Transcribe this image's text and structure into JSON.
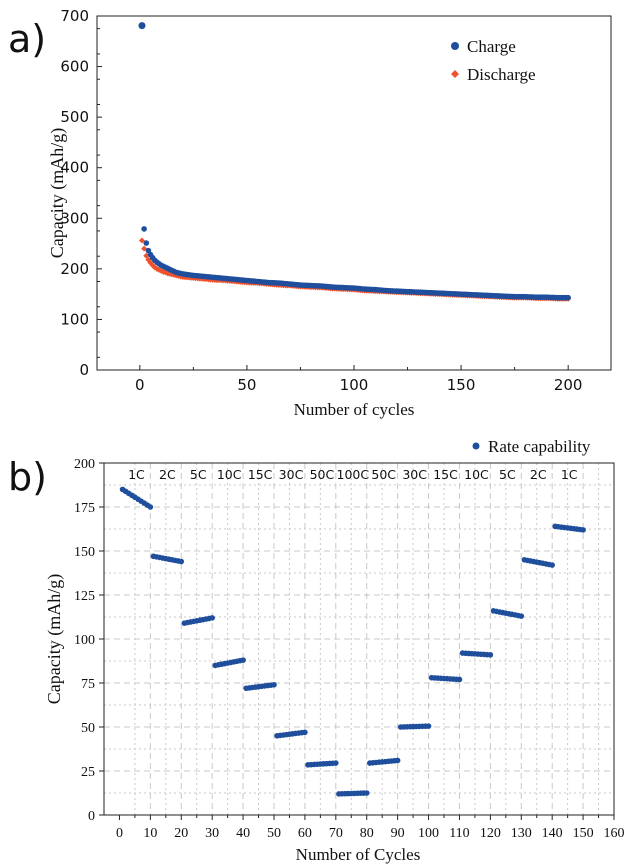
{
  "colors": {
    "charge": "#1f4e9c",
    "discharge": "#f0522c",
    "rate": "#1f4e9c",
    "grid": "#c8c8c8"
  },
  "chart_data": [
    {
      "panel_label": "a)",
      "type": "scatter",
      "xlabel": "Number of cycles",
      "ylabel": "Capacity (mAh/g)",
      "xlim": [
        -20,
        220
      ],
      "ylim": [
        0,
        700
      ],
      "x_ticks": [
        "0",
        "50",
        "100",
        "150",
        "200"
      ],
      "y_ticks": [
        "0",
        "100",
        "200",
        "300",
        "400",
        "500",
        "600",
        "700"
      ],
      "grid": false,
      "legend_position": "top-right",
      "series": [
        {
          "name": "Charge",
          "marker": "circle",
          "points": [
            [
              1,
              681
            ],
            [
              2,
              279
            ],
            [
              3,
              251
            ],
            [
              4,
              236
            ],
            [
              5,
              228
            ],
            [
              6,
              222
            ],
            [
              7,
              217
            ],
            [
              8,
              213
            ],
            [
              9,
              210
            ],
            [
              10,
              207
            ],
            [
              11,
              205
            ],
            [
              12,
              203
            ],
            [
              13,
              201
            ],
            [
              14,
              199
            ],
            [
              15,
              197
            ],
            [
              16,
              195
            ],
            [
              17,
              193
            ],
            [
              18,
              192
            ],
            [
              19,
              191
            ],
            [
              20,
              190
            ],
            [
              25,
              187
            ],
            [
              30,
              185
            ],
            [
              35,
              183
            ],
            [
              40,
              181
            ],
            [
              45,
              179
            ],
            [
              50,
              177
            ],
            [
              55,
              175
            ],
            [
              60,
              173
            ],
            [
              65,
              172
            ],
            [
              70,
              170
            ],
            [
              75,
              168
            ],
            [
              80,
              167
            ],
            [
              85,
              166
            ],
            [
              90,
              164
            ],
            [
              95,
              163
            ],
            [
              100,
              162
            ],
            [
              105,
              160
            ],
            [
              110,
              159
            ],
            [
              115,
              157
            ],
            [
              120,
              156
            ],
            [
              125,
              155
            ],
            [
              130,
              154
            ],
            [
              135,
              153
            ],
            [
              140,
              152
            ],
            [
              145,
              151
            ],
            [
              150,
              150
            ],
            [
              155,
              149
            ],
            [
              160,
              148
            ],
            [
              165,
              147
            ],
            [
              170,
              146
            ],
            [
              175,
              145
            ],
            [
              180,
              145
            ],
            [
              185,
              144
            ],
            [
              190,
              144
            ],
            [
              195,
              143
            ],
            [
              200,
              143
            ]
          ]
        },
        {
          "name": "Discharge",
          "marker": "diamond",
          "points": [
            [
              1,
              256
            ],
            [
              2,
              240
            ],
            [
              3,
              226
            ],
            [
              4,
              218
            ],
            [
              5,
              212
            ],
            [
              6,
              207
            ],
            [
              7,
              203
            ],
            [
              8,
              200
            ],
            [
              9,
              198
            ],
            [
              10,
              196
            ],
            [
              11,
              194
            ],
            [
              12,
              193
            ],
            [
              13,
              191
            ],
            [
              14,
              190
            ],
            [
              15,
              189
            ],
            [
              16,
              188
            ],
            [
              17,
              187
            ],
            [
              18,
              186
            ],
            [
              19,
              185
            ],
            [
              20,
              184
            ],
            [
              25,
              182
            ],
            [
              30,
              180
            ],
            [
              35,
              178
            ],
            [
              40,
              177
            ],
            [
              45,
              175
            ],
            [
              50,
              173
            ],
            [
              55,
              172
            ],
            [
              60,
              170
            ],
            [
              65,
              168
            ],
            [
              70,
              167
            ],
            [
              75,
              165
            ],
            [
              80,
              164
            ],
            [
              85,
              163
            ],
            [
              90,
              161
            ],
            [
              95,
              160
            ],
            [
              100,
              159
            ],
            [
              105,
              157
            ],
            [
              110,
              156
            ],
            [
              115,
              155
            ],
            [
              120,
              154
            ],
            [
              125,
              153
            ],
            [
              130,
              152
            ],
            [
              135,
              151
            ],
            [
              140,
              150
            ],
            [
              145,
              149
            ],
            [
              150,
              148
            ],
            [
              155,
              147
            ],
            [
              160,
              146
            ],
            [
              165,
              145
            ],
            [
              170,
              144
            ],
            [
              175,
              143
            ],
            [
              180,
              143
            ],
            [
              185,
              142
            ],
            [
              190,
              142
            ],
            [
              195,
              141
            ],
            [
              200,
              141
            ]
          ]
        }
      ]
    },
    {
      "panel_label": "b)",
      "type": "scatter",
      "xlabel": "Number of Cycles",
      "ylabel": "Capacity (mAh/g)",
      "xlim": [
        -5,
        160
      ],
      "ylim": [
        0,
        200
      ],
      "x_ticks": [
        "0",
        "10",
        "20",
        "30",
        "40",
        "50",
        "60",
        "70",
        "80",
        "90",
        "100",
        "110",
        "120",
        "130",
        "140",
        "150",
        "160"
      ],
      "y_ticks": [
        "0",
        "25",
        "50",
        "75",
        "100",
        "125",
        "150",
        "175",
        "200"
      ],
      "grid": true,
      "legend_position": "top-right, outside",
      "rate_labels": [
        "1C",
        "2C",
        "5C",
        "10C",
        "15C",
        "30C",
        "50C",
        "100C",
        "50C",
        "30C",
        "15C",
        "10C",
        "5C",
        "2C",
        "1C"
      ],
      "series": [
        {
          "name": "Rate capability",
          "marker": "circle",
          "segments": [
            {
              "from": 1,
              "to": 10,
              "start": 185,
              "end": 175
            },
            {
              "from": 11,
              "to": 20,
              "start": 147,
              "end": 144
            },
            {
              "from": 21,
              "to": 30,
              "start": 109,
              "end": 112
            },
            {
              "from": 31,
              "to": 40,
              "start": 85,
              "end": 88
            },
            {
              "from": 41,
              "to": 50,
              "start": 72,
              "end": 74
            },
            {
              "from": 51,
              "to": 60,
              "start": 45,
              "end": 47
            },
            {
              "from": 61,
              "to": 70,
              "start": 28.5,
              "end": 29.5
            },
            {
              "from": 71,
              "to": 80,
              "start": 12,
              "end": 12.5
            },
            {
              "from": 81,
              "to": 90,
              "start": 29.5,
              "end": 31
            },
            {
              "from": 91,
              "to": 100,
              "start": 50,
              "end": 50.5
            },
            {
              "from": 101,
              "to": 110,
              "start": 78,
              "end": 77
            },
            {
              "from": 111,
              "to": 120,
              "start": 92,
              "end": 91
            },
            {
              "from": 121,
              "to": 130,
              "start": 116,
              "end": 113
            },
            {
              "from": 131,
              "to": 140,
              "start": 145,
              "end": 142
            },
            {
              "from": 141,
              "to": 150,
              "start": 164,
              "end": 162
            }
          ]
        }
      ]
    }
  ]
}
